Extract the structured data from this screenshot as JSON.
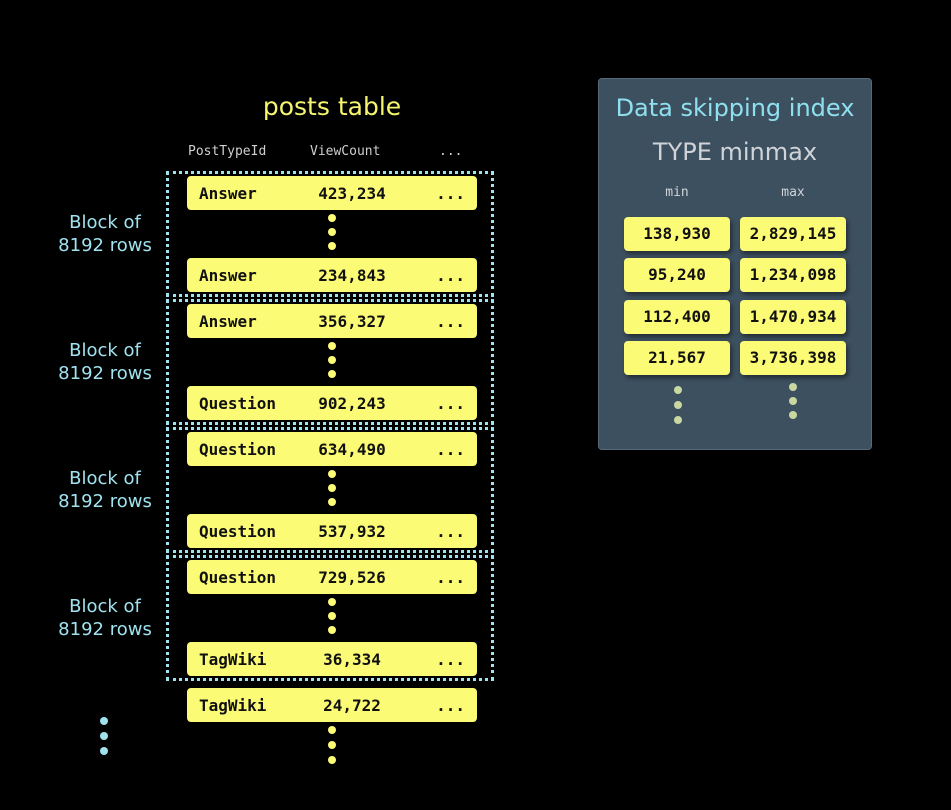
{
  "table": {
    "title": "posts table",
    "columns": [
      "PostTypeId",
      "ViewCount",
      "..."
    ],
    "rows": [
      {
        "type": "Answer",
        "views": "423,234",
        "more": "..."
      },
      {
        "type": "Answer",
        "views": "234,843",
        "more": "..."
      },
      {
        "type": "Answer",
        "views": "356,327",
        "more": "..."
      },
      {
        "type": "Question",
        "views": "902,243",
        "more": "..."
      },
      {
        "type": "Question",
        "views": "634,490",
        "more": "..."
      },
      {
        "type": "Question",
        "views": "537,932",
        "more": "..."
      },
      {
        "type": "Question",
        "views": "729,526",
        "more": "..."
      },
      {
        "type": "TagWiki",
        "views": "36,334",
        "more": "..."
      },
      {
        "type": "TagWiki",
        "views": "24,722",
        "more": "..."
      }
    ],
    "block_labels": [
      "Block of\n8192 rows",
      "Block of\n8192 rows",
      "Block of\n8192 rows",
      "Block of\n8192 rows"
    ]
  },
  "index": {
    "title": "Data skipping index",
    "subtitle": "TYPE minmax",
    "headers": [
      "min",
      "max"
    ],
    "entries": [
      {
        "min": "138,930",
        "max": "2,829,145"
      },
      {
        "min": "95,240",
        "max": "1,234,098"
      },
      {
        "min": "112,400",
        "max": "1,470,934"
      },
      {
        "min": "21,567",
        "max": "3,736,398"
      }
    ]
  },
  "colors": {
    "row": "#fbfb75",
    "block_border": "#9fe3ef",
    "panel": "#3d5060",
    "index_title": "#8fe0ef"
  }
}
